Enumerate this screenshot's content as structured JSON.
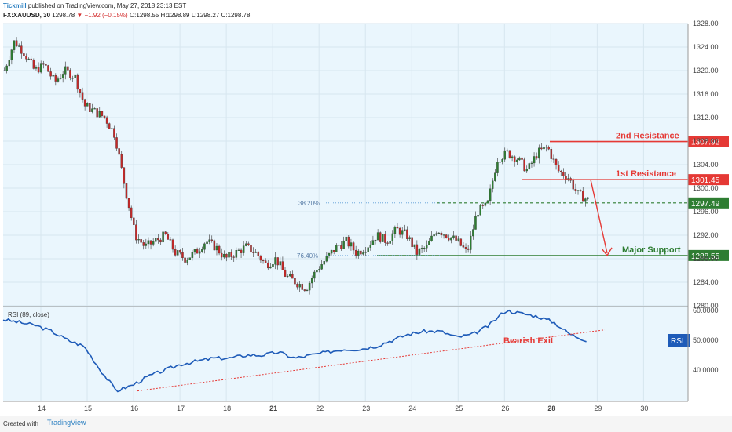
{
  "header": {
    "brand": "Tickmill",
    "published": "published on TradingView.com, May 27, 2018 23:13 EST",
    "symbol": "FX:XAUUSD, 30",
    "last": "1298.78",
    "change": "▼ −1.92 (−0.15%)",
    "ohlc_o": "O:1298.55",
    "ohlc_h": "H:1298.89",
    "ohlc_l": "L:1298.27",
    "ohlc_c": "C:1298.78"
  },
  "footer": {
    "created": "Created with",
    "tv": "TradingView"
  },
  "colors": {
    "bg": "#eaf6fd",
    "up": "#2e7d32",
    "down": "#c62828",
    "resistance": "#e53935",
    "support": "#2e7d32",
    "rsi": "#1e5bb8"
  },
  "chart_data": {
    "type": "candlestick",
    "ylim": [
      1280,
      1328
    ],
    "yticks": [
      "1328.00",
      "1324.00",
      "1320.00",
      "1316.00",
      "1312.00",
      "1308.00",
      "1304.00",
      "1300.00",
      "1296.00",
      "1292.00",
      "1288.00",
      "1284.00",
      "1280.00"
    ],
    "xticks": [
      "14",
      "15",
      "16",
      "17",
      "18",
      "21",
      "22",
      "23",
      "24",
      "25",
      "26",
      "28",
      "29",
      "30"
    ],
    "price_path": [
      1320,
      1325,
      1323,
      1320,
      1321,
      1318,
      1320,
      1319,
      1314,
      1313,
      1312,
      1309,
      1300,
      1292,
      1290,
      1291,
      1292,
      1289,
      1288,
      1289,
      1291,
      1290,
      1288,
      1289,
      1290,
      1289,
      1287,
      1288,
      1285,
      1284,
      1283,
      1286,
      1288,
      1290,
      1291,
      1289,
      1290,
      1292,
      1291,
      1293,
      1292,
      1289,
      1290,
      1293,
      1292,
      1291,
      1289,
      1296,
      1297,
      1305,
      1306,
      1305,
      1303,
      1306,
      1307,
      1303,
      1302,
      1299,
      1298
    ],
    "levels": [
      {
        "label": "2nd Resistance",
        "value": 1307.92,
        "tag": "1307.92"
      },
      {
        "label": "1st Resistance",
        "value": 1301.45,
        "tag": "1301.45"
      },
      {
        "label": "",
        "value": 1297.49,
        "tag": "1297.49"
      },
      {
        "label": "Major Support",
        "value": 1288.55,
        "tag": "1288.55"
      }
    ],
    "fib": [
      {
        "label": "38.20%",
        "value": 1297.49
      },
      {
        "label": "76.40%",
        "value": 1288.55
      }
    ],
    "rsi": {
      "label": "RSI (89, close)",
      "badge": "RSI",
      "ylim": [
        30,
        60
      ],
      "yticks": [
        "60.0000",
        "50.0000",
        "40.0000"
      ],
      "path": [
        57,
        56,
        55,
        53,
        50,
        48,
        40,
        33,
        35,
        38,
        40,
        42,
        43,
        44,
        44,
        45,
        45,
        46,
        44,
        45,
        46,
        47,
        47,
        48,
        50,
        52,
        53,
        53,
        51,
        52,
        55,
        60,
        59,
        58,
        56,
        52,
        50
      ],
      "annotation": "Bearish Exit"
    }
  }
}
